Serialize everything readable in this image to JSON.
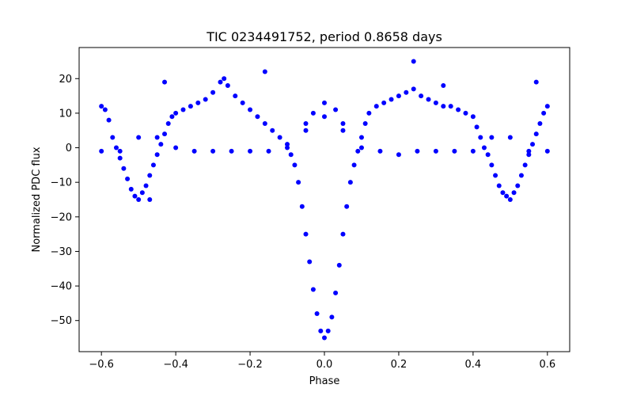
{
  "chart_data": {
    "type": "scatter",
    "title": "TIC 0234491752, period 0.8658 days",
    "xlabel": "Phase",
    "ylabel": "Normalized PDC flux",
    "xlim": [
      -0.66,
      0.66
    ],
    "ylim": [
      -59,
      29
    ],
    "x_ticks": [
      -0.6,
      -0.4,
      -0.2,
      0.0,
      0.2,
      0.4,
      0.6
    ],
    "x_tick_labels": [
      "−0.6",
      "−0.4",
      "−0.2",
      "0.0",
      "0.2",
      "0.4",
      "0.6"
    ],
    "y_ticks": [
      20,
      10,
      0,
      -10,
      -20,
      -30,
      -40,
      -50
    ],
    "y_tick_labels": [
      "20",
      "10",
      "0",
      "−10",
      "−20",
      "−30",
      "−40",
      "−50"
    ],
    "grid": false,
    "legend": "none",
    "marker_color": "#0000ff",
    "series": [
      {
        "points": [
          [
            -0.6,
            12
          ],
          [
            -0.59,
            11
          ],
          [
            -0.58,
            8
          ],
          [
            -0.57,
            3
          ],
          [
            -0.56,
            0
          ],
          [
            -0.55,
            -3
          ],
          [
            -0.54,
            -6
          ],
          [
            -0.53,
            -9
          ],
          [
            -0.52,
            -12
          ],
          [
            -0.51,
            -14
          ],
          [
            -0.5,
            -15
          ],
          [
            -0.49,
            -13
          ],
          [
            -0.48,
            -11
          ],
          [
            -0.47,
            -8
          ],
          [
            -0.46,
            -5
          ],
          [
            -0.45,
            -2
          ],
          [
            -0.44,
            1
          ],
          [
            -0.43,
            4
          ],
          [
            -0.42,
            7
          ],
          [
            -0.41,
            9
          ],
          [
            -0.4,
            10
          ],
          [
            -0.38,
            11
          ],
          [
            -0.36,
            12
          ],
          [
            -0.34,
            13
          ],
          [
            -0.32,
            14
          ],
          [
            -0.3,
            16
          ],
          [
            -0.28,
            19
          ],
          [
            -0.27,
            20
          ],
          [
            -0.26,
            18
          ],
          [
            -0.24,
            15
          ],
          [
            -0.22,
            13
          ],
          [
            -0.2,
            11
          ],
          [
            -0.18,
            9
          ],
          [
            -0.16,
            7
          ],
          [
            -0.14,
            5
          ],
          [
            -0.12,
            3
          ],
          [
            -0.1,
            1
          ],
          [
            -0.09,
            -2
          ],
          [
            -0.08,
            -5
          ],
          [
            -0.07,
            -10
          ],
          [
            -0.06,
            -17
          ],
          [
            -0.05,
            -25
          ],
          [
            -0.04,
            -33
          ],
          [
            -0.03,
            -41
          ],
          [
            -0.02,
            -48
          ],
          [
            -0.01,
            -53
          ],
          [
            0.0,
            -55
          ],
          [
            0.01,
            -53
          ],
          [
            0.02,
            -49
          ],
          [
            0.03,
            -42
          ],
          [
            0.04,
            -34
          ],
          [
            0.05,
            -25
          ],
          [
            0.06,
            -17
          ],
          [
            0.07,
            -10
          ],
          [
            0.08,
            -5
          ],
          [
            0.09,
            -1
          ],
          [
            0.1,
            3
          ],
          [
            0.11,
            7
          ],
          [
            0.12,
            10
          ],
          [
            0.14,
            12
          ],
          [
            0.16,
            13
          ],
          [
            0.18,
            14
          ],
          [
            0.2,
            15
          ],
          [
            0.22,
            16
          ],
          [
            0.24,
            17
          ],
          [
            0.26,
            15
          ],
          [
            0.28,
            14
          ],
          [
            0.3,
            13
          ],
          [
            0.32,
            12
          ],
          [
            0.34,
            12
          ],
          [
            0.36,
            11
          ],
          [
            0.38,
            10
          ],
          [
            0.4,
            9
          ],
          [
            0.41,
            6
          ],
          [
            0.42,
            3
          ],
          [
            0.43,
            0
          ],
          [
            0.44,
            -2
          ],
          [
            0.45,
            -5
          ],
          [
            0.46,
            -8
          ],
          [
            0.47,
            -11
          ],
          [
            0.48,
            -13
          ],
          [
            0.49,
            -14
          ],
          [
            0.5,
            -15
          ],
          [
            0.51,
            -13
          ],
          [
            0.52,
            -11
          ],
          [
            0.53,
            -8
          ],
          [
            0.54,
            -5
          ],
          [
            0.55,
            -2
          ],
          [
            0.56,
            1
          ],
          [
            0.57,
            4
          ],
          [
            0.58,
            7
          ],
          [
            0.59,
            10
          ],
          [
            0.6,
            12
          ],
          [
            -0.6,
            -1
          ],
          [
            -0.55,
            -1
          ],
          [
            -0.5,
            3
          ],
          [
            -0.45,
            3
          ],
          [
            -0.4,
            0
          ],
          [
            -0.35,
            -1
          ],
          [
            -0.3,
            -1
          ],
          [
            -0.25,
            -1
          ],
          [
            -0.2,
            -1
          ],
          [
            -0.15,
            -1
          ],
          [
            -0.1,
            0
          ],
          [
            -0.05,
            5
          ],
          [
            0.0,
            9
          ],
          [
            0.05,
            5
          ],
          [
            0.1,
            0
          ],
          [
            0.15,
            -1
          ],
          [
            0.2,
            -2
          ],
          [
            0.25,
            -1
          ],
          [
            0.3,
            -1
          ],
          [
            0.35,
            -1
          ],
          [
            0.4,
            -1
          ],
          [
            0.45,
            3
          ],
          [
            0.5,
            3
          ],
          [
            0.55,
            -1
          ],
          [
            0.6,
            -1
          ],
          [
            -0.05,
            7
          ],
          [
            -0.03,
            10
          ],
          [
            0.0,
            13
          ],
          [
            0.03,
            11
          ],
          [
            0.05,
            7
          ],
          [
            -0.43,
            19
          ],
          [
            -0.16,
            22
          ],
          [
            0.24,
            25
          ],
          [
            0.57,
            19
          ],
          [
            -0.47,
            -15
          ],
          [
            0.32,
            18
          ]
        ]
      }
    ]
  }
}
